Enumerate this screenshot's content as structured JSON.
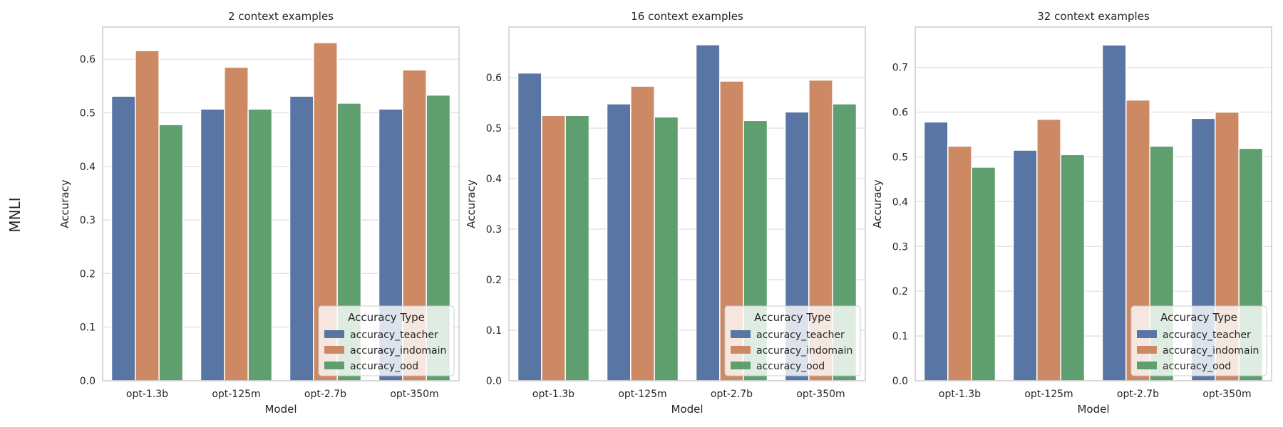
{
  "row_label": "MNLI",
  "colors": {
    "accuracy_teacher": "#5875a4",
    "accuracy_indomain": "#cc8963",
    "accuracy_ood": "#5f9e6e",
    "grid": "#dedede",
    "spine": "#cccccc"
  },
  "chart_data": [
    {
      "type": "bar",
      "title": "2 context examples",
      "xlabel": "Model",
      "ylabel": "Accuracy",
      "categories": [
        "opt-1.3b",
        "opt-125m",
        "opt-2.7b",
        "opt-350m"
      ],
      "ylim": [
        0,
        0.66
      ],
      "yticks": [
        0.0,
        0.1,
        0.2,
        0.3,
        0.4,
        0.5,
        0.6
      ],
      "ytick_labels": [
        "0.0",
        "0.1",
        "0.2",
        "0.3",
        "0.4",
        "0.5",
        "0.6"
      ],
      "grid": true,
      "legend": {
        "title": "Accuracy Type",
        "placement": "lower-right"
      },
      "series": [
        {
          "name": "accuracy_teacher",
          "values": [
            0.531,
            0.507,
            0.531,
            0.507
          ]
        },
        {
          "name": "accuracy_indomain",
          "values": [
            0.616,
            0.585,
            0.631,
            0.58
          ]
        },
        {
          "name": "accuracy_ood",
          "values": [
            0.478,
            0.507,
            0.518,
            0.533
          ]
        }
      ]
    },
    {
      "type": "bar",
      "title": "16 context examples",
      "xlabel": "Model",
      "ylabel": "Accuracy",
      "categories": [
        "opt-1.3b",
        "opt-125m",
        "opt-2.7b",
        "opt-350m"
      ],
      "ylim": [
        0,
        0.7
      ],
      "yticks": [
        0.0,
        0.1,
        0.2,
        0.3,
        0.4,
        0.5,
        0.6
      ],
      "ytick_labels": [
        "0.0",
        "0.1",
        "0.2",
        "0.3",
        "0.4",
        "0.5",
        "0.6"
      ],
      "grid": true,
      "legend": {
        "title": "Accuracy Type",
        "placement": "lower-right"
      },
      "series": [
        {
          "name": "accuracy_teacher",
          "values": [
            0.609,
            0.548,
            0.665,
            0.532
          ]
        },
        {
          "name": "accuracy_indomain",
          "values": [
            0.525,
            0.583,
            0.593,
            0.595
          ]
        },
        {
          "name": "accuracy_ood",
          "values": [
            0.525,
            0.522,
            0.515,
            0.548
          ]
        }
      ]
    },
    {
      "type": "bar",
      "title": "32 context examples",
      "xlabel": "Model",
      "ylabel": "Accuracy",
      "categories": [
        "opt-1.3b",
        "opt-125m",
        "opt-2.7b",
        "opt-350m"
      ],
      "ylim": [
        0,
        0.79
      ],
      "yticks": [
        0.0,
        0.1,
        0.2,
        0.3,
        0.4,
        0.5,
        0.6,
        0.7
      ],
      "ytick_labels": [
        "0.0",
        "0.1",
        "0.2",
        "0.3",
        "0.4",
        "0.5",
        "0.6",
        "0.7"
      ],
      "grid": true,
      "legend": {
        "title": "Accuracy Type",
        "placement": "lower-right"
      },
      "series": [
        {
          "name": "accuracy_teacher",
          "values": [
            0.578,
            0.515,
            0.75,
            0.586
          ]
        },
        {
          "name": "accuracy_indomain",
          "values": [
            0.524,
            0.584,
            0.627,
            0.6
          ]
        },
        {
          "name": "accuracy_ood",
          "values": [
            0.477,
            0.505,
            0.524,
            0.519
          ]
        }
      ]
    }
  ]
}
